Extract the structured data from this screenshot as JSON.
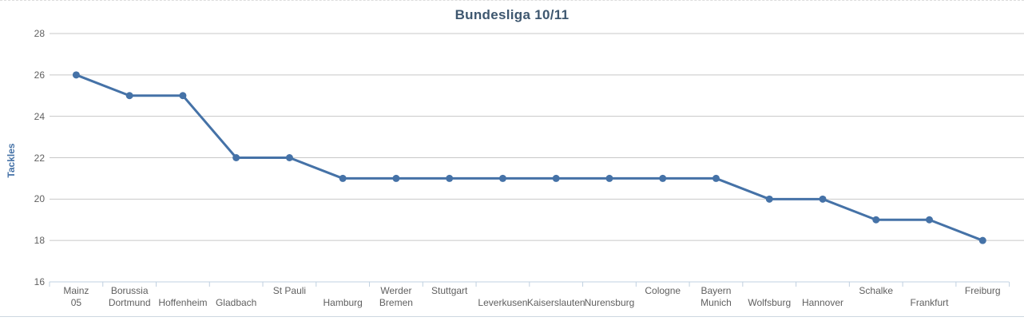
{
  "chart_data": {
    "type": "line",
    "title": "Bundesliga 10/11",
    "xlabel": "",
    "ylabel": "Tackles",
    "categories": [
      "Mainz 05",
      "Borussia Dortmund",
      "Hoffenheim",
      "Gladbach",
      "St Pauli",
      "Hamburg",
      "Werder Bremen",
      "Stuttgart",
      "Leverkusen",
      "Kaiserslauten",
      "Nurensburg",
      "Cologne",
      "Bayern Munich",
      "Wolfsburg",
      "Hannover",
      "Schalke",
      "Frankfurt",
      "Freiburg"
    ],
    "values": [
      26,
      25,
      25,
      22,
      22,
      21,
      21,
      21,
      21,
      21,
      21,
      21,
      21,
      20,
      20,
      19,
      19,
      18
    ],
    "ylim": [
      16,
      28
    ],
    "yticks": [
      16,
      18,
      20,
      22,
      24,
      26,
      28
    ],
    "ytick_interval": 2,
    "grid": true,
    "legend": "none",
    "marker": "circle",
    "x_label_stagger": [
      "wrap",
      "wrap",
      "low",
      "low",
      "high",
      "low",
      "wrap",
      "high",
      "low",
      "low",
      "low",
      "high",
      "wrap",
      "low",
      "low",
      "high",
      "low",
      "high"
    ],
    "colors": {
      "series": "#4572a7",
      "title": "#3e576f",
      "axis_title": "#4572a7",
      "tick_labels": "#606060",
      "grid_line": "#c8c8c8",
      "axis_line": "#c0d0e0",
      "background": "#ffffff",
      "top_border": "#dcdcdc",
      "bottom_border": "#cdd7e0"
    }
  }
}
